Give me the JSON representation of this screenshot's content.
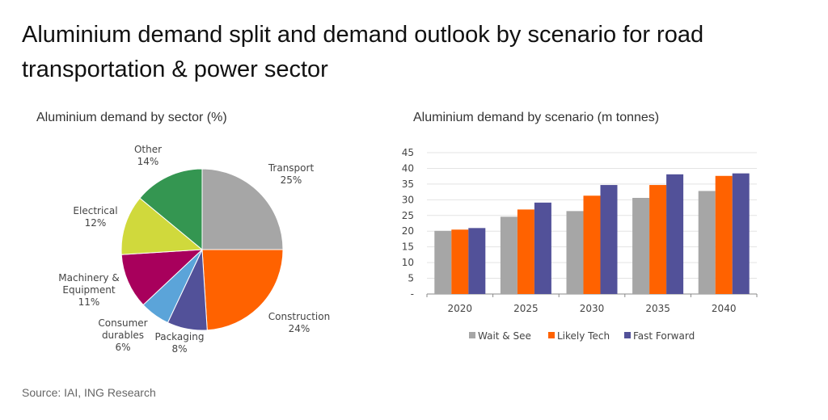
{
  "title": "Aluminium demand split and demand outlook by scenario for road transportation & power sector",
  "source": "Source: IAI, ING Research",
  "chart_data": [
    {
      "type": "pie",
      "title": "Aluminium demand by sector (%)",
      "slices": [
        {
          "label": "Transport",
          "value": 25,
          "display": "25%",
          "color": "#a6a6a6"
        },
        {
          "label": "Construction",
          "value": 24,
          "display": "24%",
          "color": "#ff6200"
        },
        {
          "label": "Packaging",
          "value": 8,
          "display": "8%",
          "color": "#525199"
        },
        {
          "label": "Consumer durables",
          "value": 6,
          "display": "6%",
          "color": "#5ba4d9"
        },
        {
          "label": "Machinery & Equipment",
          "value": 11,
          "display": "11%",
          "color": "#a8005c"
        },
        {
          "label": "Electrical",
          "value": 12,
          "display": "12%",
          "color": "#d0d93c"
        },
        {
          "label": "Other",
          "value": 14,
          "display": "14%",
          "color": "#349651"
        }
      ]
    },
    {
      "type": "bar",
      "title": "Aluminium demand by scenario (m tonnes)",
      "categories": [
        "2020",
        "2025",
        "2030",
        "2035",
        "2040"
      ],
      "ylim": [
        0,
        45
      ],
      "yticks": [
        "-",
        "5",
        "10",
        "15",
        "20",
        "25",
        "30",
        "35",
        "40",
        "45"
      ],
      "grid": true,
      "legend": "bottom",
      "series": [
        {
          "name": "Wait & See",
          "color": "#a6a6a6",
          "values": [
            20.1,
            24.6,
            26.4,
            30.6,
            32.8
          ]
        },
        {
          "name": "Likely Tech",
          "color": "#ff6200",
          "values": [
            20.5,
            26.9,
            31.3,
            34.7,
            37.6
          ]
        },
        {
          "name": "Fast Forward",
          "color": "#525199",
          "values": [
            21.0,
            29.1,
            34.7,
            38.1,
            38.4
          ]
        }
      ]
    }
  ]
}
